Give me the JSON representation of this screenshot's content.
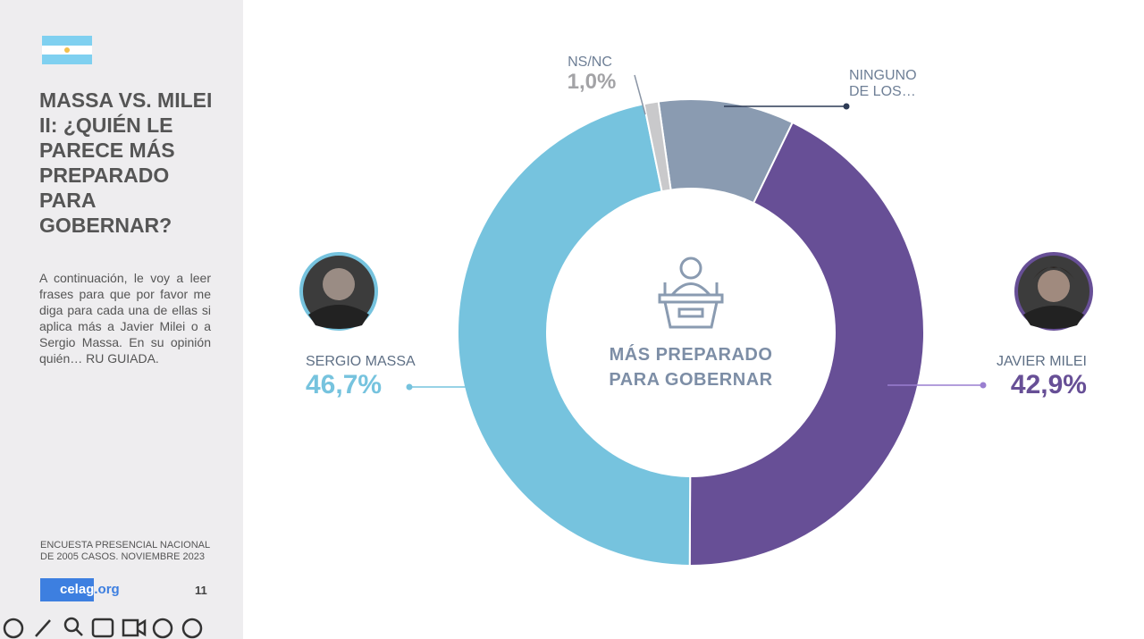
{
  "slide": {
    "title": "MASSA VS. MILEI II: ¿QUIÉN LE PARECE MÁS PREPARADO PARA GOBERNAR?",
    "description": "A continuación, le voy a leer frases para que por favor me diga para cada una de ellas si aplica más a Javier Milei o a Sergio Massa. En su opinión quién… RU GUIADA.",
    "source": "ENCUESTA PRESENCIAL NACIONAL DE 2005 CASOS. NOVIEMBRE 2023",
    "logo_name": "celag",
    "logo_domain": ".org",
    "page": "11"
  },
  "chart_data": {
    "type": "donut",
    "center_label": "MÁS PREPARADO PARA GOBERNAR",
    "categories": [
      "NINGUNO DE LOS…",
      "JAVIER MILEI",
      "SERGIO MASSA",
      "NS/NC"
    ],
    "values": [
      9.4,
      42.9,
      46.7,
      1.0
    ],
    "value_labels": [
      null,
      "42,9%",
      "46,7%",
      "1,0%"
    ],
    "colors": [
      "#8a9bb1",
      "#674f96",
      "#76c3de",
      "#c9c9cb"
    ]
  }
}
